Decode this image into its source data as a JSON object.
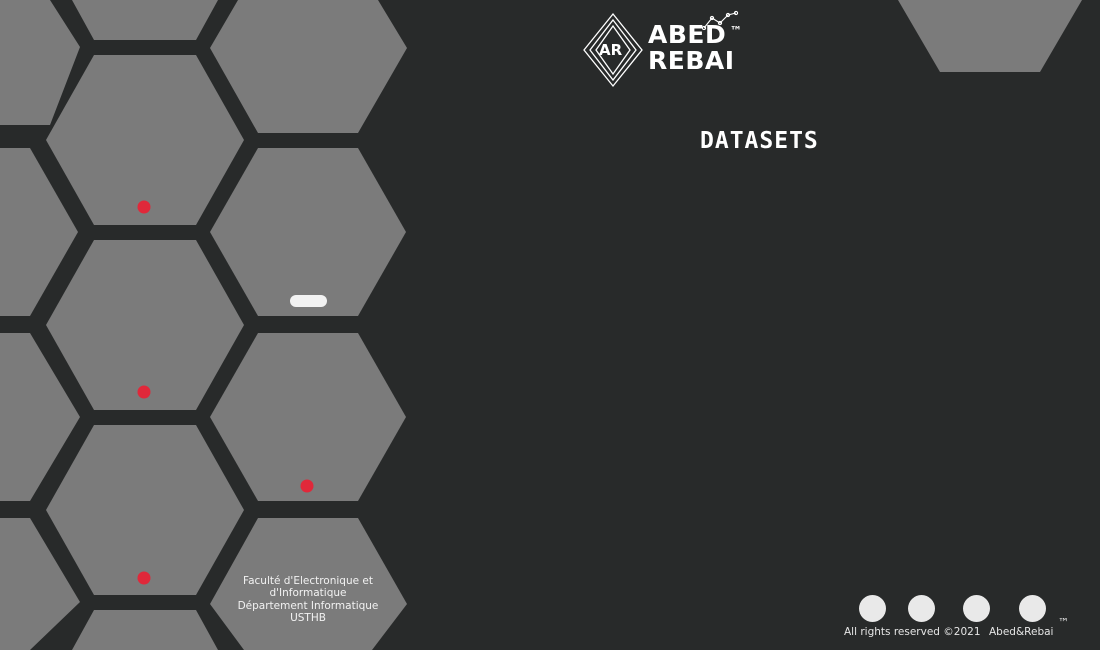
{
  "brand": {
    "logo_monogram": "AR",
    "logo_line1": "ABED",
    "logo_line2": "REBAI",
    "trademark": "™"
  },
  "page": {
    "title": "DATASETS"
  },
  "faculty": {
    "line1": "Faculté d'Electronique et",
    "line2": "d'Informatique",
    "line3": "Département Informatique",
    "line4": "USTHB"
  },
  "footer": {
    "copyright": "All rights reserved ©2021",
    "brand": "Abed&Rebai",
    "trademark": "™"
  },
  "social_links": [
    "social-link-1",
    "social-link-2",
    "social-link-3",
    "social-link-4"
  ],
  "colors": {
    "background": "#282a2a",
    "hexagon": "#7b7b7b",
    "marker": "#e0283a",
    "text": "#ffffff"
  }
}
